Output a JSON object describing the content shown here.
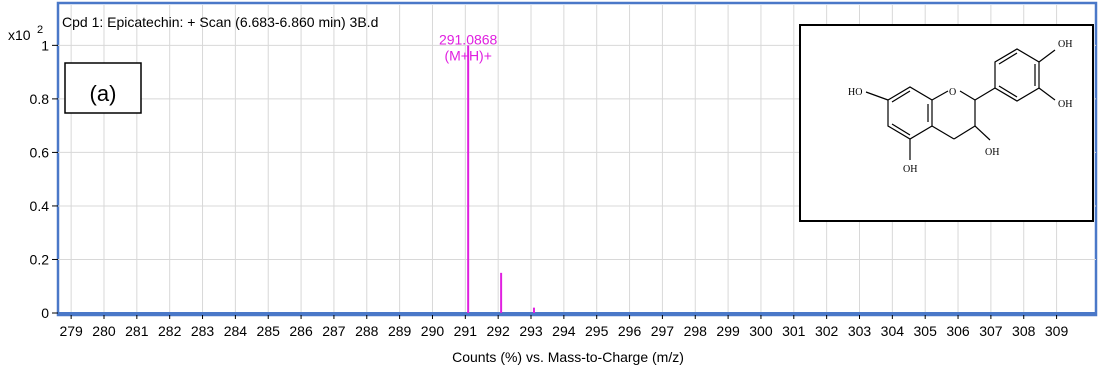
{
  "chart_data": {
    "type": "bar",
    "title": "Cpd 1: Epicatechin: + Scan (6.683-6.860 min) 3B.d",
    "y_scale_label": "x10",
    "y_scale_exponent": "2",
    "xlabel": "Counts (%) vs. Mass-to-Charge (m/z)",
    "ylabel": "",
    "xlim": [
      278.6,
      310.2
    ],
    "ylim": [
      0,
      1.02
    ],
    "x_ticks": [
      279,
      280,
      281,
      282,
      283,
      284,
      285,
      286,
      287,
      288,
      289,
      290,
      291,
      292,
      293,
      294,
      295,
      296,
      297,
      298,
      299,
      300,
      301,
      302,
      303,
      304,
      305,
      306,
      307,
      308,
      309
    ],
    "y_ticks": [
      {
        "value": 0,
        "label": "0"
      },
      {
        "value": 0.2,
        "label": "0.2"
      },
      {
        "value": 0.4,
        "label": "0.4"
      },
      {
        "value": 0.6,
        "label": "0.6"
      },
      {
        "value": 0.8,
        "label": "0.8"
      },
      {
        "value": 1,
        "label": "1"
      }
    ],
    "grid": true,
    "peaks": [
      {
        "mz": 291.0868,
        "intensity": 1.0
      },
      {
        "mz": 292.09,
        "intensity": 0.15
      },
      {
        "mz": 293.09,
        "intensity": 0.02
      }
    ],
    "annotations": [
      {
        "mz": 291.0868,
        "lines": [
          "291.0868",
          "(M+H)+"
        ]
      }
    ],
    "panel_label": "(a)",
    "structure_labels": [
      "HO",
      "OH",
      "OH",
      "OH",
      "OH"
    ],
    "colors": {
      "peak": "#e020e0",
      "frame": "#4a78c8",
      "grid": "#d8d8d8",
      "axis": "#000000"
    }
  }
}
